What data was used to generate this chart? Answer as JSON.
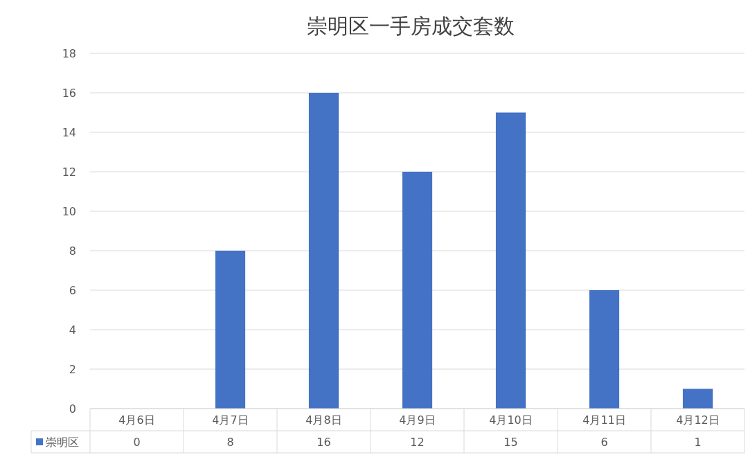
{
  "chart_data": {
    "type": "bar",
    "title": "崇明区一手房成交套数",
    "categories": [
      "4月6日",
      "4月7日",
      "4月8日",
      "4月9日",
      "4月10日",
      "4月11日",
      "4月12日"
    ],
    "series": [
      {
        "name": "崇明区",
        "color": "#4472c4",
        "values": [
          0,
          8,
          16,
          12,
          15,
          6,
          1
        ]
      }
    ],
    "ylim": [
      0,
      18
    ],
    "yticks": [
      0,
      2,
      4,
      6,
      8,
      10,
      12,
      14,
      16,
      18
    ],
    "grid": "y",
    "legend": "bottom",
    "data_labels": true
  }
}
